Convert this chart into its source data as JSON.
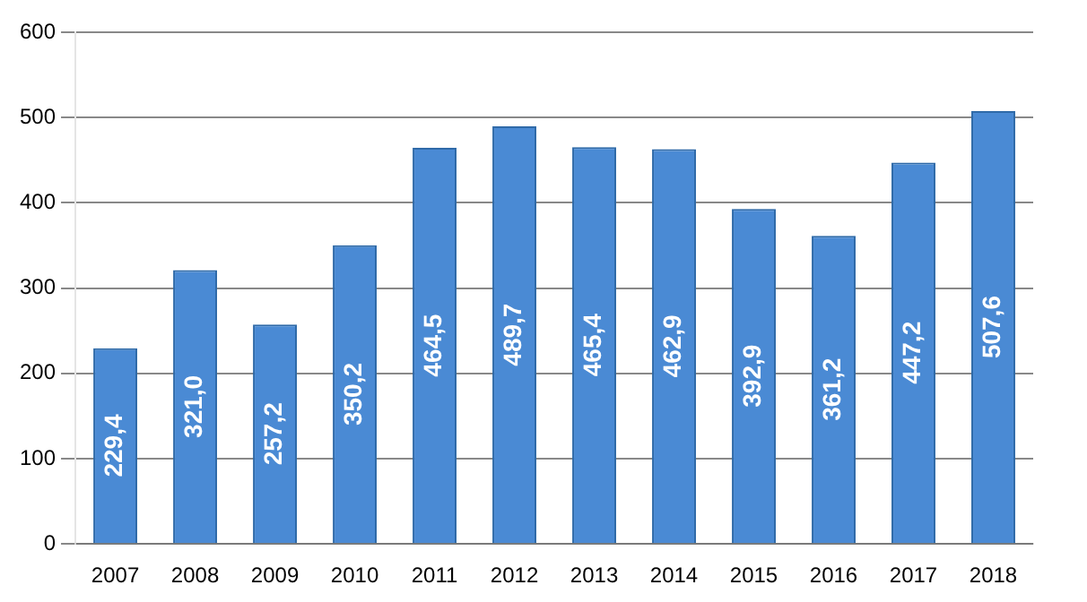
{
  "chart_data": {
    "type": "bar",
    "categories": [
      "2007",
      "2008",
      "2009",
      "2010",
      "2011",
      "2012",
      "2013",
      "2014",
      "2015",
      "2016",
      "2017",
      "2018"
    ],
    "values": [
      229.4,
      321.0,
      257.2,
      350.2,
      464.5,
      489.7,
      465.4,
      462.9,
      392.9,
      361.2,
      447.2,
      507.6
    ],
    "value_labels": [
      "229,4",
      "321,0",
      "257,2",
      "350,2",
      "464,5",
      "489,7",
      "465,4",
      "462,9",
      "392,9",
      "361,2",
      "447,2",
      "507,6"
    ],
    "color": "#4a8ad4",
    "ylim": [
      0,
      600
    ],
    "yticks": [
      0,
      100,
      200,
      300,
      400,
      500,
      600
    ],
    "grid": "y",
    "legend": false
  }
}
